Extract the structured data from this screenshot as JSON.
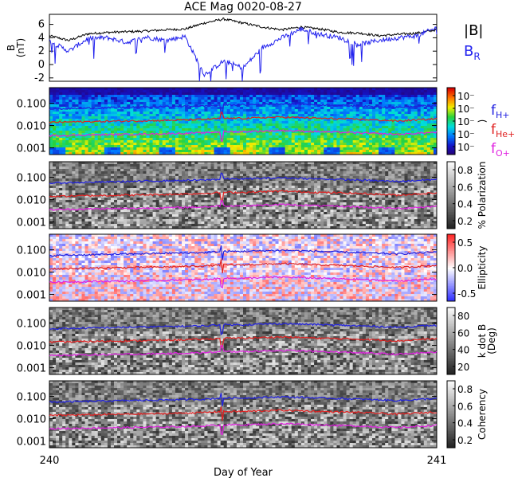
{
  "title": "ACE Mag 0020-08-27",
  "xaxis": {
    "label": "Day of Year",
    "range": [
      240,
      241
    ],
    "ticks": [
      "240",
      "241"
    ]
  },
  "mag_panel": {
    "ylabel": "B\n(nT)",
    "ylim": [
      -2.5,
      7.5
    ],
    "yticks": [
      "6",
      "4",
      "2",
      "0",
      "-2"
    ],
    "legend": [
      {
        "label": "|B|",
        "color": "#000000"
      },
      {
        "label": "B",
        "sub": "R",
        "color": "#2222ee"
      }
    ]
  },
  "freq_ticks": [
    "0.100",
    "0.010",
    "0.001"
  ],
  "line_legend": [
    {
      "label": "f",
      "sub": "H+",
      "color": "#2020e0"
    },
    {
      "label": "f",
      "sub": "He+",
      "color": "#e02020"
    },
    {
      "label": "f",
      "sub": "O+",
      "color": "#e020e0"
    }
  ],
  "spectral_panels": [
    {
      "id": "power",
      "colormap": "rainbow",
      "colorbar_label": ")",
      "colorbar_ticks": [
        "10⁻",
        "10⁻",
        "10⁻",
        "10⁻",
        "10⁻"
      ]
    },
    {
      "id": "polarization",
      "colormap": "gray",
      "colorbar_label": "% Polarization",
      "colorbar_ticks": [
        "0.8",
        "0.6",
        "0.4",
        "0.2"
      ]
    },
    {
      "id": "ellipticity",
      "colormap": "bwr",
      "colorbar_label": "Ellipticity",
      "colorbar_ticks": [
        "0.5",
        "0.0",
        "-0.5"
      ]
    },
    {
      "id": "kdotb",
      "colormap": "gray",
      "colorbar_label": "k dot B\n(Deg)",
      "colorbar_ticks": [
        "80",
        "60",
        "40",
        "20"
      ]
    },
    {
      "id": "coherency",
      "colormap": "gray",
      "colorbar_label": "Coherency",
      "colorbar_ticks": [
        "0.8",
        "0.6",
        "0.4",
        "0.2"
      ]
    }
  ],
  "chart_data": [
    {
      "type": "line",
      "title": "ACE Mag 0020-08-27",
      "xlabel": "Day of Year",
      "ylabel": "B (nT)",
      "xlim": [
        240,
        241
      ],
      "ylim": [
        -2.5,
        7.5
      ],
      "x": [
        240.0,
        240.05,
        240.1,
        240.15,
        240.2,
        240.25,
        240.3,
        240.35,
        240.4,
        240.45,
        240.5,
        240.55,
        240.6,
        240.65,
        240.7,
        240.75,
        240.8,
        240.85,
        240.9,
        240.95,
        241.0
      ],
      "series": [
        {
          "name": "|B|",
          "color": "#000000",
          "values": [
            4.3,
            3.6,
            4.6,
            4.8,
            4.9,
            5.0,
            5.2,
            5.3,
            6.2,
            6.8,
            6.2,
            5.6,
            5.2,
            5.6,
            5.3,
            4.8,
            4.7,
            4.3,
            4.5,
            4.7,
            5.2
          ]
        },
        {
          "name": "B_R",
          "color": "#2222ee",
          "values": [
            3.5,
            2.0,
            3.9,
            4.0,
            3.3,
            4.1,
            3.6,
            4.2,
            -1.5,
            0.5,
            -0.5,
            2.5,
            4.0,
            5.3,
            4.5,
            4.0,
            3.0,
            3.6,
            4.0,
            4.3,
            5.5
          ]
        }
      ]
    },
    {
      "type": "heatmap",
      "panels": [
        "power",
        "polarization",
        "ellipticity",
        "kdotb",
        "coherency"
      ],
      "xlabel": "Day of Year",
      "xlim": [
        240,
        241
      ],
      "ylim": [
        0.0005,
        0.5
      ],
      "yscale": "log",
      "x": [
        240.0,
        240.1,
        240.2,
        240.3,
        240.4,
        240.45,
        240.5,
        240.6,
        240.7,
        240.8,
        240.9,
        241.0
      ],
      "series": [
        {
          "name": "fH+",
          "color": "#2020e0",
          "values": [
            0.055,
            0.06,
            0.065,
            0.07,
            0.075,
            0.085,
            0.085,
            0.095,
            0.085,
            0.075,
            0.065,
            0.08
          ]
        },
        {
          "name": "fHe+",
          "color": "#e02020",
          "values": [
            0.014,
            0.015,
            0.016,
            0.017,
            0.019,
            0.021,
            0.021,
            0.024,
            0.021,
            0.019,
            0.016,
            0.02
          ]
        },
        {
          "name": "fO+",
          "color": "#e020e0",
          "values": [
            0.0035,
            0.0038,
            0.004,
            0.0043,
            0.0047,
            0.0053,
            0.0053,
            0.006,
            0.0053,
            0.0047,
            0.004,
            0.005
          ]
        }
      ]
    }
  ]
}
